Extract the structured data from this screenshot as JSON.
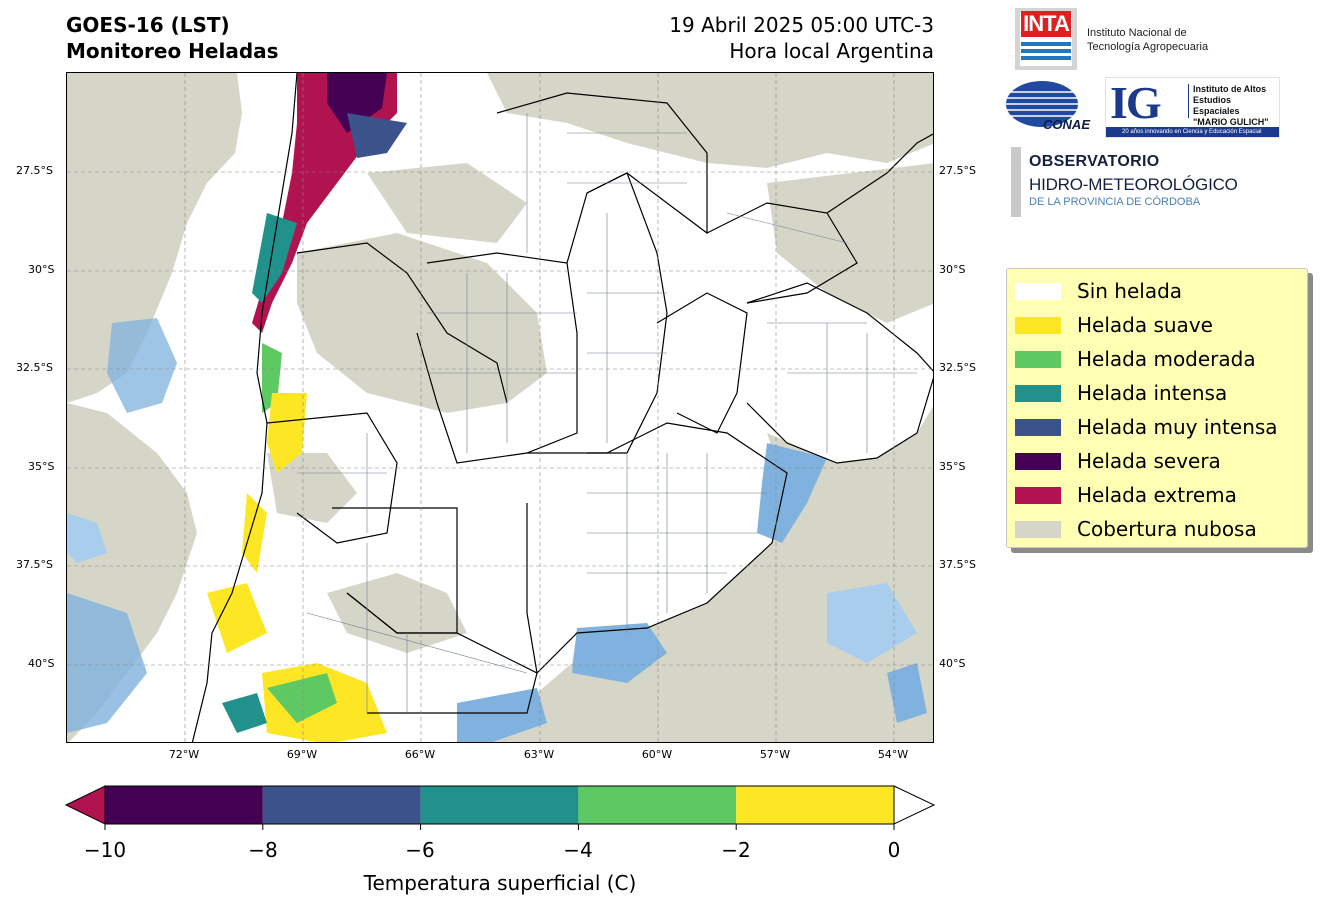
{
  "header": {
    "title_line1": "GOES-16 (LST)",
    "title_line2": "Monitoreo Heladas",
    "datetime": "19 Abril 2025 05:00 UTC-3",
    "subtitle": "Hora local Argentina"
  },
  "logos": {
    "inta_word": "INTA",
    "inta_line1": "Instituto Nacional de",
    "inta_line2": "Tecnología Agropecuaria",
    "conae_word": "CONAE",
    "ig_letters": "IG",
    "ig_line1": "Instituto de Altos",
    "ig_line2": "Estudios Espaciales",
    "ig_line3": "\"MARIO GULICH\"",
    "ig_band": "20 años innovando en Ciencia y Educación Espacial",
    "obs_line1": "OBSERVATORIO",
    "obs_line2": "HIDRO-METEOROLÓGICO",
    "obs_line3": "DE LA PROVINCIA DE CÓRDOBA"
  },
  "map": {
    "lat_labels": [
      "27.5°S",
      "30°S",
      "32.5°S",
      "35°S",
      "37.5°S",
      "40°S"
    ],
    "lon_labels": [
      "72°W",
      "69°W",
      "66°W",
      "63°W",
      "60°W",
      "57°W",
      "54°W"
    ],
    "colors": {
      "land": "#ffffff",
      "cloud": "#d6d6c8",
      "water": "#7fb2de",
      "water_light": "#a9cdec",
      "boundary_province": "#000000",
      "boundary_dept": "#6e7f91"
    }
  },
  "legend": {
    "items": [
      {
        "label": "Sin helada",
        "color": "#ffffff"
      },
      {
        "label": "Helada suave",
        "color": "#fde725"
      },
      {
        "label": "Helada moderada",
        "color": "#5ec962"
      },
      {
        "label": "Helada intensa",
        "color": "#21918c"
      },
      {
        "label": "Helada muy intensa",
        "color": "#3b528b"
      },
      {
        "label": "Helada severa",
        "color": "#440154"
      },
      {
        "label": "Helada extrema",
        "color": "#b0134f"
      },
      {
        "label": "Cobertura nubosa",
        "color": "#d6d6c8"
      }
    ]
  },
  "colorbar": {
    "ticks": [
      "−10",
      "−8",
      "−6",
      "−4",
      "−2",
      "0"
    ],
    "label": "Temperatura superficial (C)",
    "segments": [
      {
        "from": -10,
        "to": -8,
        "color": "#440154"
      },
      {
        "from": -8,
        "to": -6,
        "color": "#3b528b"
      },
      {
        "from": -6,
        "to": -4,
        "color": "#21918c"
      },
      {
        "from": -4,
        "to": -2,
        "color": "#5ec962"
      },
      {
        "from": -2,
        "to": 0,
        "color": "#fde725"
      }
    ],
    "under_color": "#b0134f",
    "over_color": "#ffffff"
  }
}
